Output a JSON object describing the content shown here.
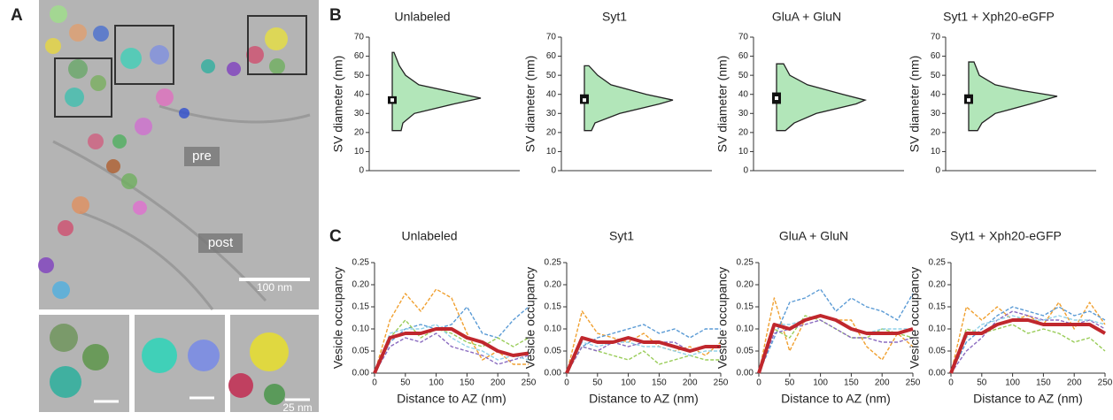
{
  "panels": {
    "a": {
      "label": "A",
      "pre": "pre",
      "post": "post",
      "scale": "100 nm",
      "inset_scale": "25 nm"
    },
    "b": {
      "label": "B"
    },
    "c": {
      "label": "C"
    }
  },
  "chart_data": [
    {
      "type": "violin",
      "title": "Unlabeled",
      "ylabel": "SV diameter (nm)",
      "ylim": [
        0,
        70
      ],
      "yticks": [
        0,
        10,
        20,
        30,
        40,
        50,
        60,
        70
      ],
      "color": "#b2e6b9",
      "y": [
        21,
        25,
        30,
        35,
        38,
        40,
        45,
        50,
        55,
        62
      ],
      "density": [
        0.1,
        0.12,
        0.25,
        0.7,
        1.0,
        0.8,
        0.3,
        0.15,
        0.08,
        0.02
      ],
      "q1": 35,
      "median": 37,
      "q3": 39
    },
    {
      "type": "violin",
      "title": "Syt1",
      "ylabel": "SV diameter (nm)",
      "ylim": [
        0,
        70
      ],
      "yticks": [
        0,
        10,
        20,
        30,
        40,
        50,
        60,
        70
      ],
      "color": "#b2e6b9",
      "y": [
        21,
        25,
        30,
        35,
        37,
        40,
        45,
        50,
        55
      ],
      "density": [
        0.08,
        0.12,
        0.4,
        0.85,
        1.0,
        0.7,
        0.3,
        0.15,
        0.05
      ],
      "q1": 35,
      "median": 37,
      "q3": 40
    },
    {
      "type": "violin",
      "title": "GluA + GluN",
      "ylabel": "SV diameter (nm)",
      "ylim": [
        0,
        70
      ],
      "yticks": [
        0,
        10,
        20,
        30,
        40,
        50,
        60,
        70
      ],
      "color": "#b2e6b9",
      "y": [
        21,
        25,
        30,
        35,
        37,
        40,
        45,
        50,
        56
      ],
      "density": [
        0.1,
        0.2,
        0.45,
        0.9,
        1.0,
        0.75,
        0.35,
        0.15,
        0.08
      ],
      "q1": 35,
      "median": 38,
      "q3": 41
    },
    {
      "type": "violin",
      "title": "Syt1 + Xph20-eGFP",
      "ylabel": "SV diameter (nm)",
      "ylim": [
        0,
        70
      ],
      "yticks": [
        0,
        10,
        20,
        30,
        40,
        50,
        60,
        70
      ],
      "color": "#b2e6b9",
      "y": [
        21,
        25,
        30,
        35,
        39,
        42,
        45,
        50,
        57
      ],
      "density": [
        0.1,
        0.15,
        0.3,
        0.7,
        1.0,
        0.6,
        0.3,
        0.12,
        0.06
      ],
      "q1": 35,
      "median": 37,
      "q3": 40
    },
    {
      "type": "line",
      "title": "Unlabeled",
      "ylabel": "Vesicle occupancy",
      "xlabel": "Distance to AZ (nm)",
      "xlim": [
        0,
        250
      ],
      "xticks": [
        0,
        50,
        100,
        150,
        200,
        250
      ],
      "ylim": [
        0,
        0.25
      ],
      "yticks": [
        {
          "value": 0,
          "label": "0.00"
        },
        {
          "value": 0.05,
          "label": "0.05"
        },
        {
          "value": 0.1,
          "label": "0.10"
        },
        {
          "value": 0.15,
          "label": "0.15"
        },
        {
          "value": 0.2,
          "label": "0.20"
        },
        {
          "value": 0.25,
          "label": "0.25"
        }
      ],
      "x": [
        0,
        25,
        50,
        75,
        100,
        125,
        150,
        175,
        200,
        225,
        250
      ],
      "series": [
        {
          "color": "#f0a030",
          "values": [
            0,
            0.12,
            0.18,
            0.14,
            0.19,
            0.17,
            0.09,
            0.03,
            0.05,
            0.02,
            0.02
          ]
        },
        {
          "color": "#5b9bd5",
          "values": [
            0,
            0.07,
            0.1,
            0.11,
            0.1,
            0.11,
            0.15,
            0.09,
            0.08,
            0.12,
            0.15
          ]
        },
        {
          "color": "#9acd5a",
          "values": [
            0,
            0.08,
            0.12,
            0.08,
            0.1,
            0.09,
            0.07,
            0.06,
            0.08,
            0.06,
            0.08
          ]
        },
        {
          "color": "#8a6bc0",
          "values": [
            0,
            0.06,
            0.08,
            0.07,
            0.09,
            0.06,
            0.05,
            0.04,
            0.02,
            0.03,
            0.04
          ]
        },
        {
          "color": "#8fd0e8",
          "values": [
            0,
            0.09,
            0.1,
            0.1,
            0.11,
            0.08,
            0.06,
            0.05,
            0.03,
            0.04,
            0.03
          ]
        },
        {
          "color": "#c0272d",
          "values": [
            0,
            0.08,
            0.09,
            0.09,
            0.1,
            0.1,
            0.08,
            0.07,
            0.05,
            0.04,
            0.045
          ]
        }
      ]
    },
    {
      "type": "line",
      "title": "Syt1",
      "ylabel": "Vesicle occupancy",
      "xlabel": "Distance to AZ (nm)",
      "xlim": [
        0,
        250
      ],
      "xticks": [
        0,
        50,
        100,
        150,
        200,
        250
      ],
      "ylim": [
        0,
        0.25
      ],
      "yticks": [
        {
          "value": 0,
          "label": "0.00"
        },
        {
          "value": 0.05,
          "label": "0.05"
        },
        {
          "value": 0.1,
          "label": "0.10"
        },
        {
          "value": 0.15,
          "label": "0.15"
        },
        {
          "value": 0.2,
          "label": "0.20"
        },
        {
          "value": 0.25,
          "label": "0.25"
        }
      ],
      "x": [
        0,
        25,
        50,
        75,
        100,
        125,
        150,
        175,
        200,
        225,
        250
      ],
      "series": [
        {
          "color": "#f0a030",
          "values": [
            0,
            0.14,
            0.09,
            0.08,
            0.07,
            0.09,
            0.06,
            0.05,
            0.06,
            0.04,
            0.07
          ]
        },
        {
          "color": "#5b9bd5",
          "values": [
            0,
            0.06,
            0.08,
            0.09,
            0.1,
            0.11,
            0.09,
            0.1,
            0.08,
            0.1,
            0.1
          ]
        },
        {
          "color": "#9acd5a",
          "values": [
            0,
            0.06,
            0.05,
            0.04,
            0.03,
            0.05,
            0.02,
            0.03,
            0.04,
            0.03,
            0.03
          ]
        },
        {
          "color": "#8a6bc0",
          "values": [
            0,
            0.06,
            0.05,
            0.07,
            0.06,
            0.07,
            0.07,
            0.07,
            0.05,
            0.06,
            0.06
          ]
        },
        {
          "color": "#8fd0e8",
          "values": [
            0,
            0.07,
            0.06,
            0.07,
            0.07,
            0.06,
            0.06,
            0.05,
            0.04,
            0.05,
            0.05
          ]
        },
        {
          "color": "#c0272d",
          "values": [
            0,
            0.08,
            0.07,
            0.07,
            0.08,
            0.07,
            0.07,
            0.06,
            0.05,
            0.06,
            0.06
          ]
        }
      ]
    },
    {
      "type": "line",
      "title": "GluA + GluN",
      "ylabel": "Vesicle occupancy",
      "xlabel": "Distance to AZ (nm)",
      "xlim": [
        0,
        250
      ],
      "xticks": [
        0,
        50,
        100,
        150,
        200,
        250
      ],
      "ylim": [
        0,
        0.25
      ],
      "yticks": [
        {
          "value": 0,
          "label": "0.00"
        },
        {
          "value": 0.05,
          "label": "0.05"
        },
        {
          "value": 0.1,
          "label": "0.10"
        },
        {
          "value": 0.15,
          "label": "0.15"
        },
        {
          "value": 0.2,
          "label": "0.20"
        },
        {
          "value": 0.25,
          "label": "0.25"
        }
      ],
      "x": [
        0,
        25,
        50,
        75,
        100,
        125,
        150,
        175,
        200,
        225,
        250
      ],
      "series": [
        {
          "color": "#f0a030",
          "values": [
            0,
            0.17,
            0.05,
            0.12,
            0.13,
            0.12,
            0.12,
            0.06,
            0.03,
            0.09,
            0.06
          ]
        },
        {
          "color": "#5b9bd5",
          "values": [
            0,
            0.08,
            0.16,
            0.17,
            0.19,
            0.14,
            0.17,
            0.15,
            0.14,
            0.12,
            0.18
          ]
        },
        {
          "color": "#9acd5a",
          "values": [
            0,
            0.1,
            0.08,
            0.13,
            0.12,
            0.1,
            0.08,
            0.08,
            0.1,
            0.09,
            0.08
          ]
        },
        {
          "color": "#8a6bc0",
          "values": [
            0,
            0.09,
            0.1,
            0.11,
            0.12,
            0.1,
            0.08,
            0.08,
            0.07,
            0.07,
            0.08
          ]
        },
        {
          "color": "#8fd0e8",
          "values": [
            0,
            0.11,
            0.11,
            0.12,
            0.13,
            0.12,
            0.1,
            0.09,
            0.1,
            0.1,
            0.1
          ]
        },
        {
          "color": "#c0272d",
          "values": [
            0,
            0.11,
            0.1,
            0.12,
            0.13,
            0.12,
            0.1,
            0.09,
            0.09,
            0.09,
            0.1
          ]
        }
      ]
    },
    {
      "type": "line",
      "title": "Syt1 + Xph20-eGFP",
      "ylabel": "Vesicle occupancy",
      "xlabel": "Distance to AZ (nm)",
      "xlim": [
        0,
        250
      ],
      "xticks": [
        0,
        50,
        100,
        150,
        200,
        250
      ],
      "ylim": [
        0,
        0.25
      ],
      "yticks": [
        {
          "value": 0,
          "label": "0.00"
        },
        {
          "value": 0.05,
          "label": "0.05"
        },
        {
          "value": 0.1,
          "label": "0.10"
        },
        {
          "value": 0.15,
          "label": "0.15"
        },
        {
          "value": 0.2,
          "label": "0.20"
        },
        {
          "value": 0.25,
          "label": "0.25"
        }
      ],
      "x": [
        0,
        25,
        50,
        75,
        100,
        125,
        150,
        175,
        200,
        225,
        250
      ],
      "series": [
        {
          "color": "#f0a030",
          "values": [
            0,
            0.15,
            0.12,
            0.15,
            0.12,
            0.13,
            0.11,
            0.16,
            0.1,
            0.16,
            0.11
          ]
        },
        {
          "color": "#5b9bd5",
          "values": [
            0,
            0.07,
            0.1,
            0.13,
            0.15,
            0.14,
            0.13,
            0.15,
            0.13,
            0.14,
            0.12
          ]
        },
        {
          "color": "#9acd5a",
          "values": [
            0,
            0.1,
            0.09,
            0.1,
            0.11,
            0.09,
            0.1,
            0.09,
            0.07,
            0.08,
            0.05
          ]
        },
        {
          "color": "#8a6bc0",
          "values": [
            0,
            0.05,
            0.08,
            0.12,
            0.14,
            0.13,
            0.12,
            0.12,
            0.11,
            0.12,
            0.1
          ]
        },
        {
          "color": "#8fd0e8",
          "values": [
            0,
            0.08,
            0.11,
            0.12,
            0.13,
            0.12,
            0.12,
            0.13,
            0.12,
            0.12,
            0.11
          ]
        },
        {
          "color": "#c0272d",
          "values": [
            0,
            0.09,
            0.09,
            0.11,
            0.12,
            0.12,
            0.11,
            0.11,
            0.11,
            0.11,
            0.09
          ]
        }
      ]
    }
  ]
}
